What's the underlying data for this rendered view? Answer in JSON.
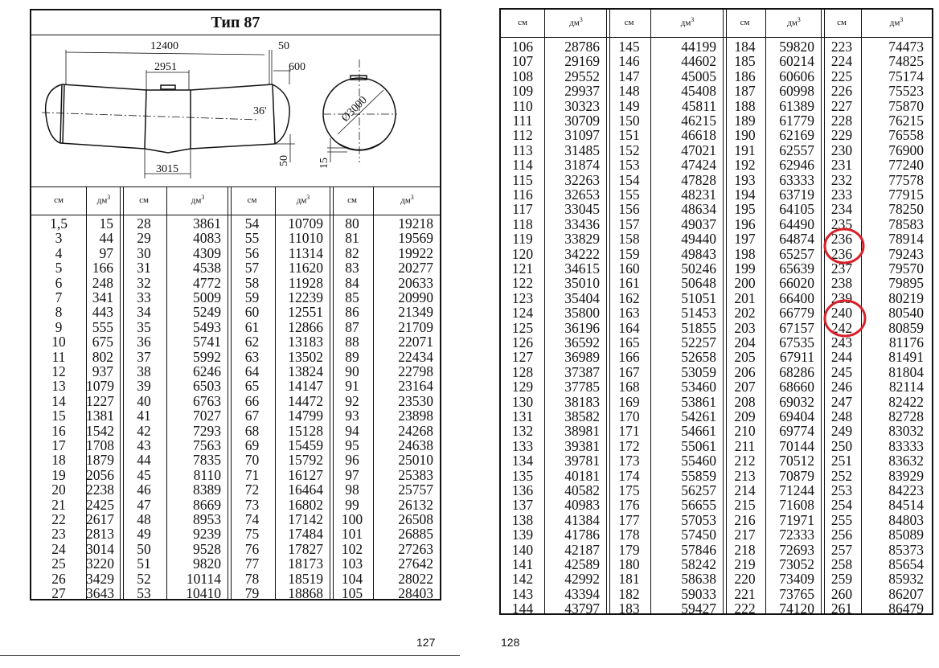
{
  "left_page": {
    "title": "Тип 87",
    "page_number": "127",
    "diagram": {
      "dimensions": {
        "overall_length": "12400",
        "end_offset": "50",
        "cap_length": "600",
        "top_center_width": "2951",
        "angle": "36'",
        "diameter": "Ø3000",
        "bottom_center_width": "3015",
        "sag": "50",
        "sump": "15"
      }
    },
    "header": {
      "cm": "см",
      "dm": "дм",
      "dm_sup": "3"
    },
    "groups": [
      [
        [
          "1,5",
          "15"
        ],
        [
          "3",
          "44"
        ],
        [
          "4",
          "97"
        ],
        [
          "5",
          "166"
        ],
        [
          "6",
          "248"
        ],
        [
          "7",
          "341"
        ],
        [
          "8",
          "443"
        ],
        [
          "9",
          "555"
        ],
        [
          "10",
          "675"
        ],
        [
          "11",
          "802"
        ],
        [
          "12",
          "937"
        ],
        [
          "13",
          "1079"
        ],
        [
          "14",
          "1227"
        ],
        [
          "15",
          "1381"
        ],
        [
          "16",
          "1542"
        ],
        [
          "17",
          "1708"
        ],
        [
          "18",
          "1879"
        ],
        [
          "19",
          "2056"
        ],
        [
          "20",
          "2238"
        ],
        [
          "21",
          "2425"
        ],
        [
          "22",
          "2617"
        ],
        [
          "23",
          "2813"
        ],
        [
          "24",
          "3014"
        ],
        [
          "25",
          "3220"
        ],
        [
          "26",
          "3429"
        ],
        [
          "27",
          "3643"
        ]
      ],
      [
        [
          "28",
          "3861"
        ],
        [
          "29",
          "4083"
        ],
        [
          "30",
          "4309"
        ],
        [
          "31",
          "4538"
        ],
        [
          "32",
          "4772"
        ],
        [
          "33",
          "5009"
        ],
        [
          "34",
          "5249"
        ],
        [
          "35",
          "5493"
        ],
        [
          "36",
          "5741"
        ],
        [
          "37",
          "5992"
        ],
        [
          "38",
          "6246"
        ],
        [
          "39",
          "6503"
        ],
        [
          "40",
          "6763"
        ],
        [
          "41",
          "7027"
        ],
        [
          "42",
          "7293"
        ],
        [
          "43",
          "7563"
        ],
        [
          "44",
          "7835"
        ],
        [
          "45",
          "8110"
        ],
        [
          "46",
          "8389"
        ],
        [
          "47",
          "8669"
        ],
        [
          "48",
          "8953"
        ],
        [
          "49",
          "9239"
        ],
        [
          "50",
          "9528"
        ],
        [
          "51",
          "9820"
        ],
        [
          "52",
          "10114"
        ],
        [
          "53",
          "10410"
        ]
      ],
      [
        [
          "54",
          "10709"
        ],
        [
          "55",
          "11010"
        ],
        [
          "56",
          "11314"
        ],
        [
          "57",
          "11620"
        ],
        [
          "58",
          "11928"
        ],
        [
          "59",
          "12239"
        ],
        [
          "60",
          "12551"
        ],
        [
          "61",
          "12866"
        ],
        [
          "62",
          "13183"
        ],
        [
          "63",
          "13502"
        ],
        [
          "64",
          "13824"
        ],
        [
          "65",
          "14147"
        ],
        [
          "66",
          "14472"
        ],
        [
          "67",
          "14799"
        ],
        [
          "68",
          "15128"
        ],
        [
          "69",
          "15459"
        ],
        [
          "70",
          "15792"
        ],
        [
          "71",
          "16127"
        ],
        [
          "72",
          "16464"
        ],
        [
          "73",
          "16802"
        ],
        [
          "74",
          "17142"
        ],
        [
          "75",
          "17484"
        ],
        [
          "76",
          "17827"
        ],
        [
          "77",
          "18173"
        ],
        [
          "78",
          "18519"
        ],
        [
          "79",
          "18868"
        ]
      ],
      [
        [
          "80",
          "19218"
        ],
        [
          "81",
          "19569"
        ],
        [
          "82",
          "19922"
        ],
        [
          "83",
          "20277"
        ],
        [
          "84",
          "20633"
        ],
        [
          "85",
          "20990"
        ],
        [
          "86",
          "21349"
        ],
        [
          "87",
          "21709"
        ],
        [
          "88",
          "22071"
        ],
        [
          "89",
          "22434"
        ],
        [
          "90",
          "22798"
        ],
        [
          "91",
          "23164"
        ],
        [
          "92",
          "23530"
        ],
        [
          "93",
          "23898"
        ],
        [
          "94",
          "24268"
        ],
        [
          "95",
          "24638"
        ],
        [
          "96",
          "25010"
        ],
        [
          "97",
          "25383"
        ],
        [
          "98",
          "25757"
        ],
        [
          "99",
          "26132"
        ],
        [
          "100",
          "26508"
        ],
        [
          "101",
          "26885"
        ],
        [
          "102",
          "27263"
        ],
        [
          "103",
          "27642"
        ],
        [
          "104",
          "28022"
        ],
        [
          "105",
          "28403"
        ]
      ]
    ]
  },
  "right_page": {
    "page_number": "128",
    "header": {
      "cm": "см",
      "dm": "дм",
      "dm_sup": "3"
    },
    "highlight_color": "#d8202a",
    "highlighted_values": [
      [
        "236",
        "236"
      ],
      [
        "240",
        "242"
      ]
    ],
    "groups": [
      [
        [
          "106",
          "28786"
        ],
        [
          "107",
          "29169"
        ],
        [
          "108",
          "29552"
        ],
        [
          "109",
          "29937"
        ],
        [
          "110",
          "30323"
        ],
        [
          "111",
          "30709"
        ],
        [
          "112",
          "31097"
        ],
        [
          "113",
          "31485"
        ],
        [
          "114",
          "31874"
        ],
        [
          "115",
          "32263"
        ],
        [
          "116",
          "32653"
        ],
        [
          "117",
          "33045"
        ],
        [
          "118",
          "33436"
        ],
        [
          "119",
          "33829"
        ],
        [
          "120",
          "34222"
        ],
        [
          "121",
          "34615"
        ],
        [
          "122",
          "35010"
        ],
        [
          "123",
          "35404"
        ],
        [
          "124",
          "35800"
        ],
        [
          "125",
          "36196"
        ],
        [
          "126",
          "36592"
        ],
        [
          "127",
          "36989"
        ],
        [
          "128",
          "37387"
        ],
        [
          "129",
          "37785"
        ],
        [
          "130",
          "38183"
        ],
        [
          "131",
          "38582"
        ],
        [
          "132",
          "38981"
        ],
        [
          "133",
          "39381"
        ],
        [
          "134",
          "39781"
        ],
        [
          "135",
          "40181"
        ],
        [
          "136",
          "40582"
        ],
        [
          "137",
          "40983"
        ],
        [
          "138",
          "41384"
        ],
        [
          "139",
          "41786"
        ],
        [
          "140",
          "42187"
        ],
        [
          "141",
          "42589"
        ],
        [
          "142",
          "42992"
        ],
        [
          "143",
          "43394"
        ],
        [
          "144",
          "43797"
        ]
      ],
      [
        [
          "145",
          "44199"
        ],
        [
          "146",
          "44602"
        ],
        [
          "147",
          "45005"
        ],
        [
          "148",
          "45408"
        ],
        [
          "149",
          "45811"
        ],
        [
          "150",
          "46215"
        ],
        [
          "151",
          "46618"
        ],
        [
          "152",
          "47021"
        ],
        [
          "153",
          "47424"
        ],
        [
          "154",
          "47828"
        ],
        [
          "155",
          "48231"
        ],
        [
          "156",
          "48634"
        ],
        [
          "157",
          "49037"
        ],
        [
          "158",
          "49440"
        ],
        [
          "159",
          "49843"
        ],
        [
          "160",
          "50246"
        ],
        [
          "161",
          "50648"
        ],
        [
          "162",
          "51051"
        ],
        [
          "163",
          "51453"
        ],
        [
          "164",
          "51855"
        ],
        [
          "165",
          "52257"
        ],
        [
          "166",
          "52658"
        ],
        [
          "167",
          "53059"
        ],
        [
          "168",
          "53460"
        ],
        [
          "169",
          "53861"
        ],
        [
          "170",
          "54261"
        ],
        [
          "171",
          "54661"
        ],
        [
          "172",
          "55061"
        ],
        [
          "173",
          "55460"
        ],
        [
          "174",
          "55859"
        ],
        [
          "175",
          "56257"
        ],
        [
          "176",
          "56655"
        ],
        [
          "177",
          "57053"
        ],
        [
          "178",
          "57450"
        ],
        [
          "179",
          "57846"
        ],
        [
          "180",
          "58242"
        ],
        [
          "181",
          "58638"
        ],
        [
          "182",
          "59033"
        ],
        [
          "183",
          "59427"
        ]
      ],
      [
        [
          "184",
          "59820"
        ],
        [
          "185",
          "60214"
        ],
        [
          "186",
          "60606"
        ],
        [
          "187",
          "60998"
        ],
        [
          "188",
          "61389"
        ],
        [
          "189",
          "61779"
        ],
        [
          "190",
          "62169"
        ],
        [
          "191",
          "62557"
        ],
        [
          "192",
          "62946"
        ],
        [
          "193",
          "63333"
        ],
        [
          "194",
          "63719"
        ],
        [
          "195",
          "64105"
        ],
        [
          "196",
          "64490"
        ],
        [
          "197",
          "64874"
        ],
        [
          "198",
          "65257"
        ],
        [
          "199",
          "65639"
        ],
        [
          "200",
          "66020"
        ],
        [
          "201",
          "66400"
        ],
        [
          "202",
          "66779"
        ],
        [
          "203",
          "67157"
        ],
        [
          "204",
          "67535"
        ],
        [
          "205",
          "67911"
        ],
        [
          "206",
          "68286"
        ],
        [
          "207",
          "68660"
        ],
        [
          "208",
          "69032"
        ],
        [
          "209",
          "69404"
        ],
        [
          "210",
          "69774"
        ],
        [
          "211",
          "70144"
        ],
        [
          "212",
          "70512"
        ],
        [
          "213",
          "70879"
        ],
        [
          "214",
          "71244"
        ],
        [
          "215",
          "71608"
        ],
        [
          "216",
          "71971"
        ],
        [
          "217",
          "72333"
        ],
        [
          "218",
          "72693"
        ],
        [
          "219",
          "73052"
        ],
        [
          "220",
          "73409"
        ],
        [
          "221",
          "73765"
        ],
        [
          "222",
          "74120"
        ]
      ],
      [
        [
          "223",
          "74473"
        ],
        [
          "224",
          "74825"
        ],
        [
          "225",
          "75174"
        ],
        [
          "226",
          "75523"
        ],
        [
          "227",
          "75870"
        ],
        [
          "228",
          "76215"
        ],
        [
          "229",
          "76558"
        ],
        [
          "230",
          "76900"
        ],
        [
          "231",
          "77240"
        ],
        [
          "232",
          "77578"
        ],
        [
          "233",
          "77915"
        ],
        [
          "234",
          "78250"
        ],
        [
          "235",
          "78583"
        ],
        [
          "236",
          "78914"
        ],
        [
          "236",
          "79243"
        ],
        [
          "237",
          "79570"
        ],
        [
          "238",
          "79895"
        ],
        [
          "239",
          "80219"
        ],
        [
          "240",
          "80540"
        ],
        [
          "242",
          "80859"
        ],
        [
          "243",
          "81176"
        ],
        [
          "244",
          "81491"
        ],
        [
          "245",
          "81804"
        ],
        [
          "246",
          "82114"
        ],
        [
          "247",
          "82422"
        ],
        [
          "248",
          "82728"
        ],
        [
          "249",
          "83032"
        ],
        [
          "250",
          "83333"
        ],
        [
          "251",
          "83632"
        ],
        [
          "252",
          "83929"
        ],
        [
          "253",
          "84223"
        ],
        [
          "254",
          "84514"
        ],
        [
          "255",
          "84803"
        ],
        [
          "256",
          "85089"
        ],
        [
          "257",
          "85373"
        ],
        [
          "258",
          "85654"
        ],
        [
          "259",
          "85932"
        ],
        [
          "260",
          "86207"
        ],
        [
          "261",
          "86479"
        ]
      ]
    ]
  }
}
